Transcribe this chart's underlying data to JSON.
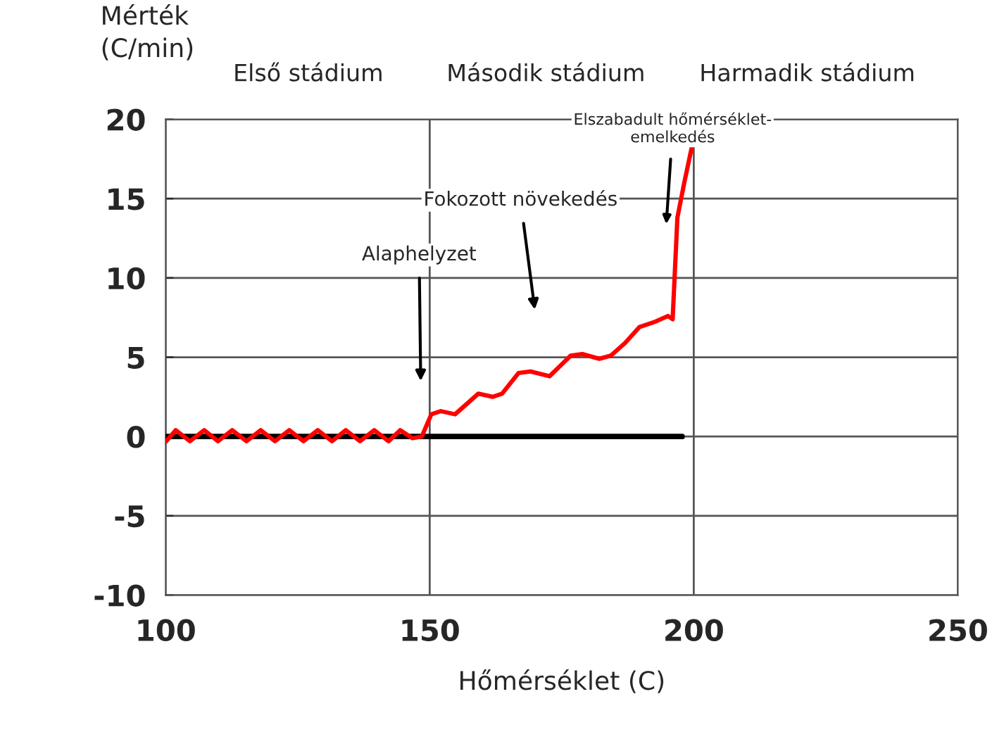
{
  "chart_data": {
    "type": "line",
    "xlabel": "Hőmérséklet (C)",
    "ylabel": "Mérték\n(C/min)",
    "xlim": [
      100,
      250
    ],
    "xticks": [
      100,
      150,
      200,
      250
    ],
    "ylim": [
      -10,
      20
    ],
    "yticks": [
      -10,
      -5,
      0,
      5,
      10,
      15,
      20
    ],
    "grid": true,
    "legend": false,
    "marker": "none",
    "line_style": "solid",
    "series": [
      {
        "color": "#ff0000",
        "x": [
          100.1,
          101.9,
          104.6,
          107.3,
          109.9,
          112.6,
          115.3,
          118.0,
          120.7,
          123.4,
          126.1,
          128.8,
          131.5,
          134.1,
          136.8,
          139.5,
          142.2,
          144.4,
          146.7,
          148.5,
          150.3,
          152.1,
          154.8,
          159.2,
          161.9,
          163.7,
          166.8,
          169.1,
          172.7,
          176.7,
          178.9,
          182.1,
          184.3,
          187.0,
          189.7,
          192.4,
          195.1,
          196.0,
          196.9,
          198.2,
          199.6
        ],
        "values": [
          -0.3,
          0.4,
          -0.3,
          0.4,
          -0.3,
          0.4,
          -0.3,
          0.4,
          -0.3,
          0.4,
          -0.3,
          0.4,
          -0.3,
          0.4,
          -0.3,
          0.4,
          -0.3,
          0.4,
          -0.1,
          0.0,
          1.4,
          1.6,
          1.4,
          2.7,
          2.5,
          2.7,
          4.0,
          4.1,
          3.8,
          5.1,
          5.2,
          4.9,
          5.1,
          5.9,
          6.9,
          7.2,
          7.6,
          7.4,
          13.8,
          16.0,
          18.2
        ]
      },
      {
        "color": "#000000",
        "x": [
          100,
          197.8
        ],
        "values": [
          0,
          0
        ]
      }
    ],
    "annotations": [
      "Első stádium",
      "Második stádium",
      "Harmadik stádium",
      "Alaphelyzet",
      "Fokozott növekedés",
      "Elszabadult hőmérséklet-\nemelkedés"
    ]
  }
}
